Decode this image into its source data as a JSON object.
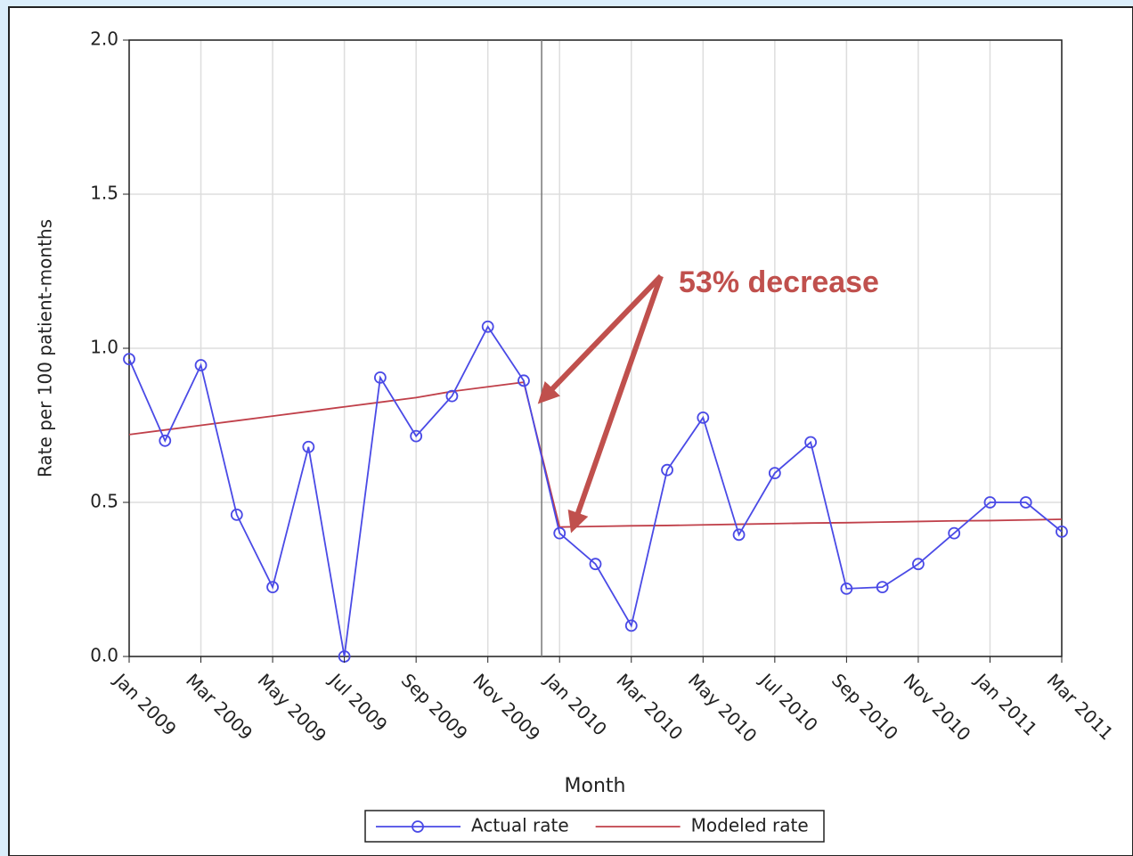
{
  "chart_data": {
    "type": "line",
    "annotation": "53% decrease",
    "xlabel": "Month",
    "ylabel": "Rate per 100 patient-months",
    "categories": [
      "Jan 2009",
      null,
      "Mar 2009",
      null,
      "May 2009",
      null,
      "Jul 2009",
      null,
      "Sep 2009",
      null,
      "Nov 2009",
      null,
      "Jan 2010",
      null,
      "Mar 2010",
      null,
      "May 2010",
      null,
      "Jul 2010",
      null,
      "Sep 2010",
      null,
      "Nov 2010",
      null,
      "Jan 2011",
      null,
      "Mar 2011"
    ],
    "series": [
      {
        "name": "Actual rate",
        "color": "#4a4ae6",
        "marker": "circle",
        "values": [
          0.965,
          0.7,
          0.945,
          0.46,
          0.225,
          0.68,
          0.0,
          0.905,
          0.715,
          0.845,
          1.07,
          0.895,
          0.4,
          0.3,
          0.1,
          0.605,
          0.775,
          0.395,
          0.595,
          0.695,
          0.22,
          0.225,
          0.3,
          0.4,
          0.5,
          0.5,
          0.405
        ]
      },
      {
        "name": "Modeled rate",
        "color": "#c0404a",
        "values": [
          0.72,
          0.735,
          0.75,
          0.765,
          0.78,
          0.795,
          0.81,
          0.825,
          0.84,
          0.86,
          0.875,
          0.89,
          0.42,
          0.422,
          0.424,
          0.425,
          0.427,
          0.429,
          0.431,
          0.433,
          0.434,
          0.436,
          0.438,
          0.44,
          0.441,
          0.443,
          0.445
        ]
      }
    ],
    "reference_line_x": 11.5,
    "ylim": [
      0,
      2
    ],
    "yticks": [
      {
        "value": 0,
        "label": "0.0"
      },
      0.5,
      {
        "value": 1,
        "label": "1.0"
      },
      1.5,
      {
        "value": 2,
        "label": "2.0"
      }
    ],
    "grid": true,
    "legend": "bottom"
  }
}
